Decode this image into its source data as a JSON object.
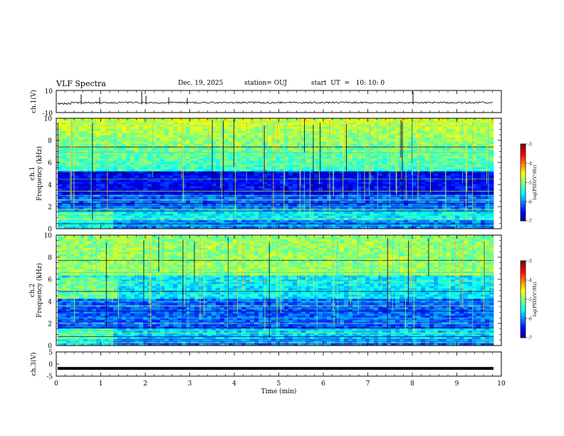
{
  "header": {
    "title": "VLF Spectra",
    "date": "Dec. 19, 2025",
    "station": "station= OUJ",
    "start": "start  UT  =   10: 10: 0"
  },
  "chart_data": [
    {
      "type": "line",
      "panel": "ch1-waveform",
      "ylabel": "ch.1(V)",
      "ylim": [
        -10,
        10
      ],
      "y_ticks": [
        "10",
        "-10"
      ],
      "xlim": [
        0,
        10
      ],
      "baseline_value": 0,
      "color": "#000000"
    },
    {
      "type": "heatmap",
      "panel": "ch1-spectrogram",
      "ylabel_line1": "ch.1",
      "ylabel_line2": "Frequency  (kHz)",
      "ylim": [
        0,
        10
      ],
      "y_ticks": [
        "0",
        "2",
        "4",
        "6",
        "8",
        "10"
      ],
      "xlim": [
        0,
        10
      ],
      "colorbar": {
        "label": "log(PSD)(V²/Hz)",
        "range": [
          -7,
          -3
        ],
        "ticks": [
          "-3",
          "-4",
          "-5",
          "-6",
          "-7"
        ],
        "palette": "jet"
      }
    },
    {
      "type": "heatmap",
      "panel": "ch2-spectrogram",
      "ylabel_line1": "ch.2",
      "ylabel_line2": "Frequency  (kHz)",
      "ylim": [
        0,
        10
      ],
      "y_ticks": [
        "0",
        "2",
        "4",
        "6",
        "8",
        "10"
      ],
      "xlim": [
        0,
        10
      ],
      "colorbar": {
        "label": "log(PSD)(V²/Hz)",
        "range": [
          -7,
          -3
        ],
        "ticks": [
          "-3",
          "-4",
          "-5",
          "-6",
          "-7"
        ],
        "palette": "jet"
      }
    },
    {
      "type": "line",
      "panel": "ch3-waveform",
      "ylabel": "ch.3(V)",
      "ylim": [
        -5,
        5
      ],
      "y_ticks": [
        "5",
        "0",
        "-5"
      ],
      "xlim": [
        0,
        10
      ],
      "xlabel": "Time  (min)",
      "x_ticks": [
        "0",
        "1",
        "2",
        "3",
        "4",
        "5",
        "6",
        "7",
        "8",
        "9",
        "10"
      ],
      "constant_value": -1.8,
      "color": "#000000"
    }
  ]
}
